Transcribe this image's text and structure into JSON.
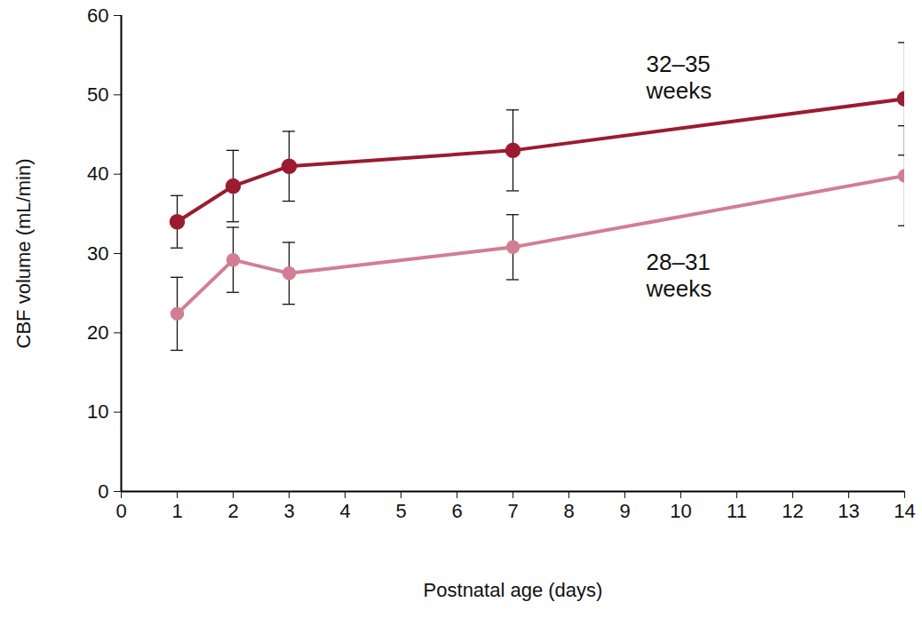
{
  "chart_data": {
    "type": "line",
    "x_label": "Postnatal age (days)",
    "y_label": "CBF volume (mL/min)",
    "x": [
      1,
      2,
      3,
      7,
      14
    ],
    "xlim": [
      0,
      14
    ],
    "xticks": [
      0,
      1,
      2,
      3,
      4,
      5,
      6,
      7,
      8,
      9,
      10,
      11,
      12,
      13,
      14
    ],
    "ylim": [
      0,
      60
    ],
    "yticks": [
      0,
      10,
      20,
      30,
      40,
      50,
      60
    ],
    "grid": false,
    "series": [
      {
        "name": "32–35 weeks",
        "color": "#9b1b30",
        "marker": "circle",
        "values": [
          34,
          38.5,
          41,
          43,
          49.5
        ],
        "errors": [
          3.3,
          4.5,
          4.4,
          5.1,
          7.1
        ]
      },
      {
        "name": "28–31 weeks",
        "color": "#d07f93",
        "marker": "circle",
        "values": [
          22.4,
          29.2,
          27.5,
          30.8,
          39.8
        ],
        "errors": [
          4.6,
          4.1,
          3.9,
          4.1,
          6.3
        ]
      }
    ]
  }
}
